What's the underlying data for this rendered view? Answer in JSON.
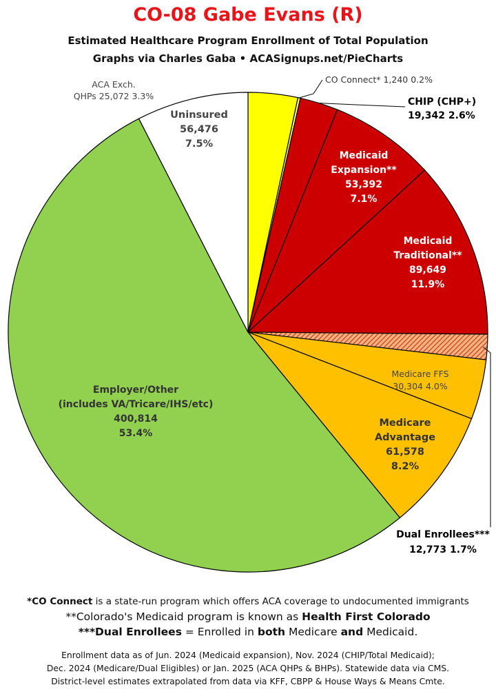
{
  "header": {
    "title": "CO-08 Gabe Evans (R)",
    "subtitle": "Estimated Healthcare Program Enrollment of Total Population",
    "credit": "Graphs via Charles Gaba  •  ACASignups.net/PieCharts"
  },
  "chart_data": {
    "type": "pie",
    "start": "12 o'clock",
    "direction": "clockwise",
    "slices": [
      {
        "label": "ACA Exch. QHPs",
        "value": 25072,
        "percent": "3.3%",
        "color": "#ffff00",
        "label_lines": [
          "ACA Exch.",
          "QHPs 25,072 3.3%"
        ]
      },
      {
        "label": "CO Connect*",
        "value": 1240,
        "percent": "0.2%",
        "color": "#ffff66",
        "label_lines": [
          "CO Connect* 1,240 0.2%"
        ]
      },
      {
        "label": "CHIP (CHP+)",
        "value": 19342,
        "percent": "2.6%",
        "color": "#cc0000",
        "label_lines": [
          "CHIP (CHP+)",
          "19,342 2.6%"
        ]
      },
      {
        "label": "Medicaid Expansion**",
        "value": 53392,
        "percent": "7.1%",
        "color": "#cc0000",
        "label_lines": [
          "Medicaid",
          "Expansion**",
          "53,392",
          "7.1%"
        ]
      },
      {
        "label": "Medicaid Traditional**",
        "value": 89649,
        "percent": "11.9%",
        "color": "#cc0000",
        "label_lines": [
          "Medicaid",
          "Traditional**",
          "89,649",
          "11.9%"
        ]
      },
      {
        "label": "Dual Enrollees***",
        "value": 12773,
        "percent": "1.7%",
        "color": "#e06000",
        "pattern": "hatched",
        "label_lines": [
          "Dual Enrollees***",
          "12,773 1.7%"
        ]
      },
      {
        "label": "Medicare FFS",
        "value": 30304,
        "percent": "4.0%",
        "color": "#ffc000",
        "label_lines": [
          "Medicare FFS",
          "30,304 4.0%"
        ]
      },
      {
        "label": "Medicare Advantage",
        "value": 61578,
        "percent": "8.2%",
        "color": "#ffc000",
        "label_lines": [
          "Medicare",
          "Advantage",
          "61,578",
          "8.2%"
        ]
      },
      {
        "label": "Employer/Other (includes VA/Tricare/IHS/etc)",
        "value": 400814,
        "percent": "53.4%",
        "color": "#92d050",
        "label_lines": [
          "Employer/Other",
          "(includes VA/Tricare/IHS/etc)",
          "400,814",
          "53.4%"
        ]
      },
      {
        "label": "Uninsured",
        "value": 56476,
        "percent": "7.5%",
        "color": "#ffffff",
        "label_lines": [
          "Uninsured",
          "56,476",
          "7.5%"
        ]
      }
    ]
  },
  "footnotes": {
    "n1_bold": "*CO Connect",
    "n1_rest": " is a state-run program which offers ACA coverage to undocumented immigrants",
    "n2_pre": "**Colorado's Medicaid program is known as ",
    "n2_bold": "Health First Colorado",
    "n3_bold1": "***Dual Enrollees",
    "n3_mid1": " = Enrolled in ",
    "n3_bold2": "both",
    "n3_mid2": " Medicare ",
    "n3_bold3": "and",
    "n3_end": " Medicaid."
  },
  "sources": {
    "line1": "Enrollment data as of Jun. 2024 (Medicaid expansion), Nov. 2024 (CHIP/Total Medicaid);",
    "line2": "Dec. 2024 (Medicare/Dual Eligibles) or Jan. 2025 (ACA QHPs & BHPs). Statewide data via CMS.",
    "line3": "District-level estimates extrapolated from data via KFF, CBPP & House Ways & Means Cmte."
  }
}
